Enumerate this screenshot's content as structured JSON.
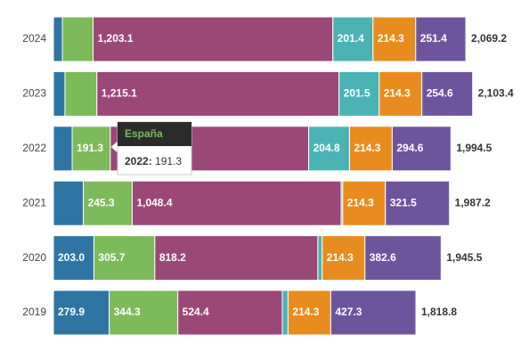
{
  "chart_data": {
    "type": "stacked-bar-horizontal",
    "categories": [
      "2024",
      "2023",
      "2022",
      "2021",
      "2020",
      "2019"
    ],
    "series": [
      {
        "color": "#2e75a3",
        "values": [
          44.7,
          57.9,
          94.0,
          150.0,
          203.0,
          279.9
        ],
        "value_labels": [
          null,
          null,
          null,
          null,
          "203.0",
          "279.9"
        ]
      },
      {
        "name": "España",
        "color": "#7cba5a",
        "values": [
          154.3,
          160.0,
          191.3,
          245.3,
          305.7,
          344.3
        ],
        "value_labels": [
          null,
          null,
          "191.3",
          "245.3",
          "305.7",
          "344.3"
        ]
      },
      {
        "color": "#9b4778",
        "values": [
          1203.1,
          1215.1,
          995.5,
          1048.4,
          818.2,
          524.4
        ],
        "value_labels": [
          "1,203.1",
          "1,215.1",
          null,
          "1,048.4",
          "818.2",
          "524.4"
        ]
      },
      {
        "color": "#4bb3b3",
        "values": [
          201.4,
          201.5,
          204.8,
          7.7,
          21.7,
          28.6
        ],
        "value_labels": [
          "201.4",
          "201.5",
          "204.8",
          null,
          null,
          null
        ]
      },
      {
        "color": "#e88c1f",
        "values": [
          214.3,
          214.3,
          214.3,
          214.3,
          214.3,
          214.3
        ],
        "value_labels": [
          "214.3",
          "214.3",
          "214.3",
          "214.3",
          "214.3",
          "214.3"
        ]
      },
      {
        "color": "#6d559e",
        "values": [
          251.4,
          254.6,
          294.6,
          321.5,
          382.6,
          427.3
        ],
        "value_labels": [
          "251.4",
          "254.6",
          "294.6",
          "321.5",
          "382.6",
          "427.3"
        ]
      }
    ],
    "totals": [
      2069.2,
      2103.4,
      1994.5,
      1987.2,
      1945.5,
      1818.8
    ],
    "total_labels": [
      "2,069.2",
      "2,103.4",
      "1,994.5",
      "1,987.2",
      "1,945.5",
      "1,818.8"
    ],
    "tooltip": {
      "label": "2022:",
      "series": 1,
      "category": 2
    }
  }
}
